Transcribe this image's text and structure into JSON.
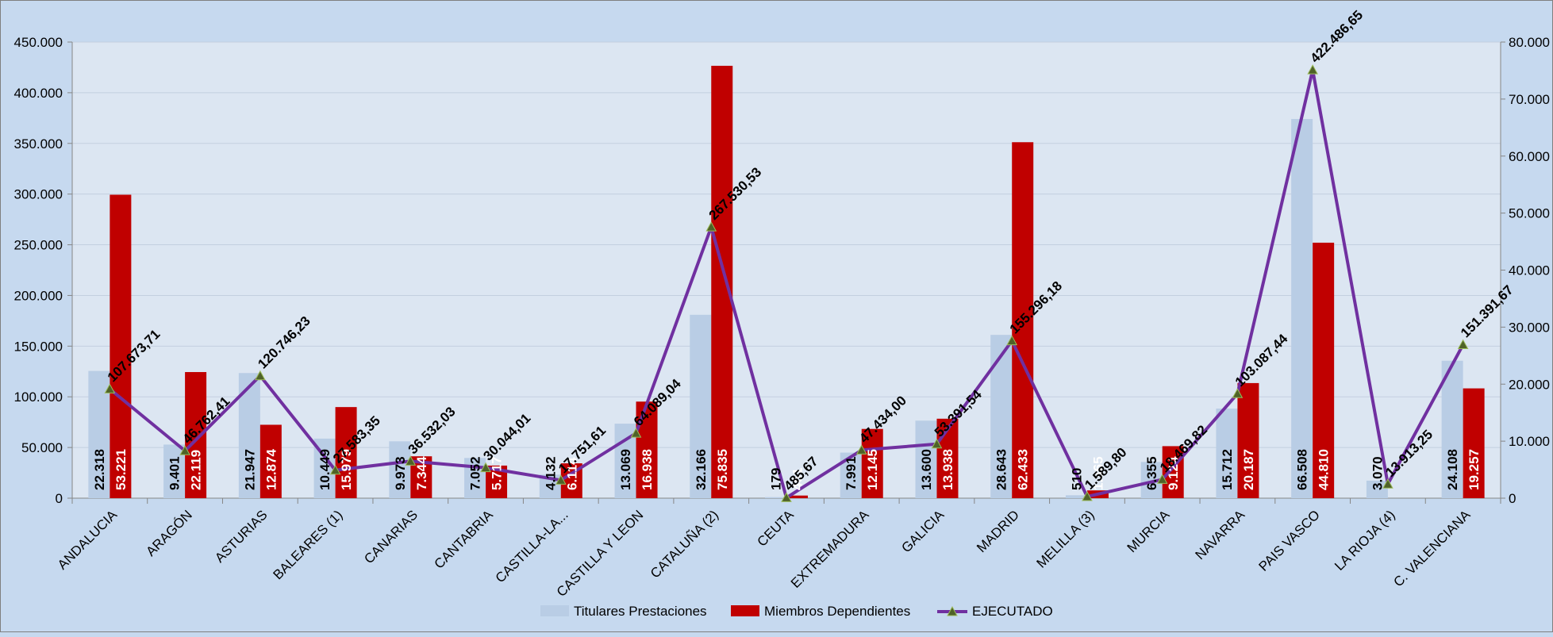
{
  "chart_data": {
    "type": "bar",
    "categories": [
      "ANDALUCIA",
      "ARAGÓN",
      "ASTURIAS",
      "BALEARES (1)",
      "CANARIAS",
      "CANTABRIA",
      "CASTILLA-LA...",
      "CASTILLA Y LEON",
      "CATALUÑA (2)",
      "CEUTA",
      "EXTREMADURA",
      "GALICIA",
      "MADRID",
      "MELILLA (3)",
      "MURCIA",
      "NAVARRA",
      "PAIS VASCO",
      "LA RIOJA (4)",
      "C. VALENCIANA"
    ],
    "series": [
      {
        "name": "Titulares Prestaciones",
        "type": "bar",
        "axis": "right",
        "color": "#b9cde5",
        "values": [
          22318,
          9401,
          21947,
          10449,
          9973,
          7052,
          4132,
          13069,
          32166,
          179,
          7991,
          13600,
          28643,
          510,
          6355,
          15712,
          66508,
          3070,
          24108
        ],
        "labels": [
          "22.318",
          "9.401",
          "21.947",
          "10.449",
          "9.973",
          "7.052",
          "4.132",
          "13.069",
          "32.166",
          "179",
          "7.991",
          "13.600",
          "28.643",
          "510",
          "6.355",
          "15.712",
          "66.508",
          "3.070",
          "24.108"
        ]
      },
      {
        "name": "Miembros Dependientes",
        "type": "bar",
        "axis": "right",
        "color": "#c00000",
        "values": [
          53221,
          22119,
          12874,
          15979,
          7344,
          5717,
          6114,
          16938,
          75835,
          461,
          12145,
          13938,
          62433,
          1365,
          9124,
          20187,
          44810,
          0,
          19257
        ],
        "labels": [
          "53.221",
          "22.119",
          "12.874",
          "15.979",
          "7.344",
          "5.717",
          "6.114",
          "16.938",
          "75.835",
          "461",
          "12.145",
          "13.938",
          "62.433",
          "1.365",
          "9.124",
          "20.187",
          "44.810",
          "",
          "19.257"
        ]
      },
      {
        "name": "EJECUTADO",
        "type": "line",
        "axis": "left",
        "color": "#7030a0",
        "values": [
          107673.71,
          46762.41,
          120746.23,
          27583.35,
          36532.03,
          30044.01,
          17751.61,
          64089.04,
          267530.53,
          485.67,
          47434.0,
          53391.54,
          155296.18,
          1589.8,
          18469.82,
          103087.44,
          422486.65,
          13913.25,
          151391.67
        ],
        "labels": [
          "107.673,71",
          "46.762,41",
          "120.746,23",
          "27.583,35",
          "36.532,03",
          "30.044,01",
          "17.751,61",
          "64.089,04",
          "267.530,53",
          "485,67",
          "47.434,00",
          "53.391,54",
          "155.296,18",
          "1.589,80",
          "18.469,82",
          "103.087,44",
          "422.486,65",
          "13.913,25",
          "151.391,67"
        ]
      }
    ],
    "y_left": {
      "ylim": [
        0,
        450000
      ],
      "ticks": [
        "0",
        "50.000",
        "100.000",
        "150.000",
        "200.000",
        "250.000",
        "300.000",
        "350.000",
        "400.000",
        "450.000"
      ]
    },
    "y_right": {
      "ylim": [
        0,
        80000
      ],
      "ticks": [
        "0",
        "10.000",
        "20.000",
        "30.000",
        "40.000",
        "50.000",
        "60.000",
        "70.000",
        "80.000"
      ]
    },
    "grid": true,
    "legend": "bottom"
  }
}
